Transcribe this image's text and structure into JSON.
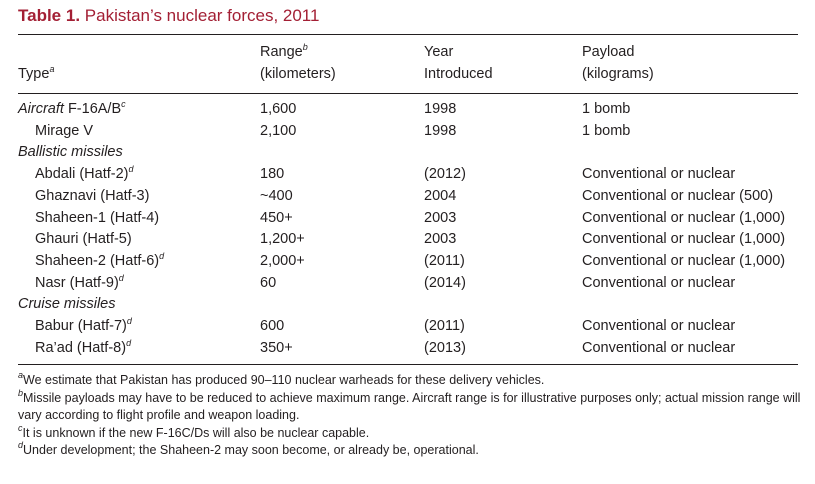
{
  "title": {
    "label": "Table  1.",
    "text": "Pakistan’s nuclear forces, 2011"
  },
  "headers": {
    "type": "Type",
    "type_note": "a",
    "range_line1": "Range",
    "range_note": "b",
    "range_line2": "(kilometers)",
    "year_line1": "Year",
    "year_line2": "Introduced",
    "payload_line1": "Payload",
    "payload_line2": "(kilograms)"
  },
  "rows": [
    {
      "kind": "cat",
      "type": "Aircraft",
      "type_rest": " F-16A/B",
      "note": "c",
      "range": "1,600",
      "year": "1998",
      "payload": "1 bomb"
    },
    {
      "kind": "item",
      "type": "Mirage V",
      "note": "",
      "range": "2,100",
      "year": "1998",
      "payload": "1 bomb"
    },
    {
      "kind": "section",
      "type": "Ballistic missiles"
    },
    {
      "kind": "item",
      "type": "Abdali (Hatf-2)",
      "note": "d",
      "range": "180",
      "year": "(2012)",
      "payload": "Conventional or nuclear"
    },
    {
      "kind": "item",
      "type": "Ghaznavi (Hatf-3)",
      "note": "",
      "range": "~400",
      "year": "2004",
      "payload": "Conventional or nuclear (500)"
    },
    {
      "kind": "item",
      "type": "Shaheen-1 (Hatf-4)",
      "note": "",
      "range": "450+",
      "year": "2003",
      "payload": "Conventional or nuclear (1,000)"
    },
    {
      "kind": "item",
      "type": "Ghauri (Hatf-5)",
      "note": "",
      "range": "1,200+",
      "year": "2003",
      "payload": "Conventional or nuclear (1,000)"
    },
    {
      "kind": "item",
      "type": "Shaheen-2 (Hatf-6)",
      "note": "d",
      "range": "2,000+",
      "year": "(2011)",
      "payload": "Conventional or nuclear (1,000)"
    },
    {
      "kind": "item",
      "type": "Nasr (Hatf-9)",
      "note": "d",
      "range": "60",
      "year": "(2014)",
      "payload": "Conventional or nuclear"
    },
    {
      "kind": "section",
      "type": "Cruise missiles"
    },
    {
      "kind": "item",
      "type": "Babur (Hatf-7)",
      "note": "d",
      "range": "600",
      "year": "(2011)",
      "payload": "Conventional or nuclear"
    },
    {
      "kind": "item",
      "type": "Ra’ad (Hatf-8)",
      "note": "d",
      "range": "350+",
      "year": "(2013)",
      "payload": "Conventional or nuclear"
    }
  ],
  "footnotes": [
    {
      "mark": "a",
      "text": "We estimate that Pakistan has produced 90–110 nuclear warheads for these delivery vehicles."
    },
    {
      "mark": "b",
      "text": "Missile payloads may have to be reduced to achieve maximum range. Aircraft range is for illustrative purposes only; actual mission range will vary according to flight profile and weapon loading."
    },
    {
      "mark": "c",
      "text": "It is unknown if the new F-16C/Ds will also be nuclear capable."
    },
    {
      "mark": "d",
      "text": "Under development; the Shaheen-2 may soon become, or already be, operational."
    }
  ]
}
